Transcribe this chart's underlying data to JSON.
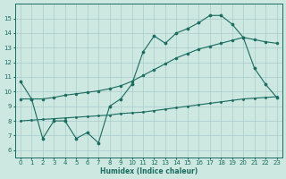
{
  "title": "",
  "xlabel": "Humidex (Indice chaleur)",
  "background_color": "#cce8e0",
  "grid_color": "#aacccc",
  "line_color": "#1a6b60",
  "xlim": [
    -0.5,
    23.5
  ],
  "ylim": [
    5.5,
    16.0
  ],
  "xticks": [
    0,
    1,
    2,
    3,
    4,
    5,
    6,
    7,
    8,
    9,
    10,
    11,
    12,
    13,
    14,
    15,
    16,
    17,
    18,
    19,
    20,
    21,
    22,
    23
  ],
  "yticks": [
    6,
    7,
    8,
    9,
    10,
    11,
    12,
    13,
    14,
    15
  ],
  "line1_x": [
    0,
    1,
    2,
    3,
    4,
    5,
    6,
    7,
    8,
    9,
    10,
    11,
    12,
    13,
    14,
    15,
    16,
    17,
    18,
    19,
    20,
    21,
    22,
    23
  ],
  "line1_y": [
    10.7,
    9.5,
    6.8,
    8.0,
    8.0,
    6.8,
    7.2,
    6.5,
    9.0,
    9.5,
    10.5,
    12.7,
    13.8,
    13.3,
    14.0,
    14.3,
    14.7,
    15.2,
    15.2,
    14.6,
    13.7,
    11.6,
    10.5,
    9.6
  ],
  "line2_x": [
    0,
    1,
    2,
    3,
    4,
    5,
    6,
    7,
    8,
    9,
    10,
    11,
    12,
    13,
    14,
    15,
    16,
    17,
    18,
    19,
    20,
    21,
    22,
    23
  ],
  "line2_y": [
    9.5,
    9.5,
    9.5,
    9.6,
    9.75,
    9.85,
    9.95,
    10.05,
    10.2,
    10.4,
    10.7,
    11.1,
    11.5,
    11.9,
    12.3,
    12.6,
    12.9,
    13.1,
    13.3,
    13.5,
    13.7,
    13.55,
    13.4,
    13.3
  ],
  "line3_x": [
    0,
    1,
    2,
    3,
    4,
    5,
    6,
    7,
    8,
    9,
    10,
    11,
    12,
    13,
    14,
    15,
    16,
    17,
    18,
    19,
    20,
    21,
    22,
    23
  ],
  "line3_y": [
    8.0,
    8.05,
    8.1,
    8.15,
    8.2,
    8.25,
    8.3,
    8.35,
    8.4,
    8.5,
    8.55,
    8.6,
    8.7,
    8.8,
    8.9,
    9.0,
    9.1,
    9.2,
    9.3,
    9.4,
    9.5,
    9.55,
    9.6,
    9.65
  ]
}
